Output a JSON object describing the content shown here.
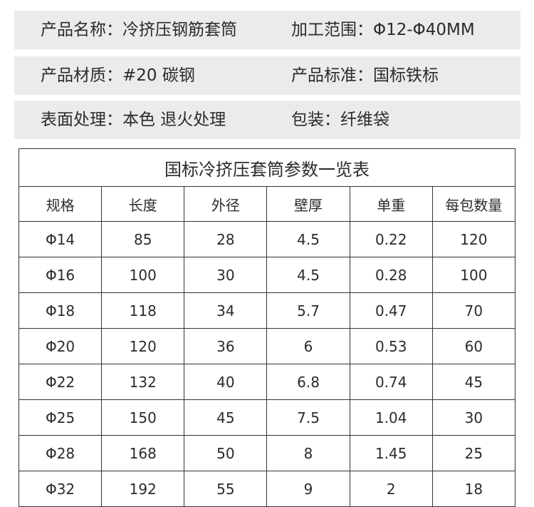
{
  "info": [
    {
      "left": "产品名称：冷挤压钢筋套筒",
      "right": "加工范围：Φ12-Φ40MM"
    },
    {
      "left": "产品材质：#20 碳钢",
      "right": "产品标准：国标铁标"
    },
    {
      "left": "表面处理：本色 退火处理",
      "right": "包装：纤维袋"
    }
  ],
  "table": {
    "title": "国标冷挤压套筒参数一览表",
    "headers": [
      "规格",
      "长度",
      "外径",
      "壁厚",
      "单重",
      "每包数量"
    ],
    "rows": [
      [
        "Φ14",
        "85",
        "28",
        "4.5",
        "0.22",
        "120"
      ],
      [
        "Φ16",
        "100",
        "30",
        "4.5",
        "0.28",
        "100"
      ],
      [
        "Φ18",
        "118",
        "34",
        "5.7",
        "0.47",
        "70"
      ],
      [
        "Φ20",
        "120",
        "36",
        "6",
        "0.53",
        "60"
      ],
      [
        "Φ22",
        "132",
        "40",
        "6.8",
        "0.74",
        "45"
      ],
      [
        "Φ25",
        "150",
        "45",
        "7.5",
        "1.04",
        "30"
      ],
      [
        "Φ28",
        "168",
        "50",
        "8",
        "1.45",
        "25"
      ],
      [
        "Φ32",
        "192",
        "55",
        "9",
        "2",
        "18"
      ]
    ]
  }
}
